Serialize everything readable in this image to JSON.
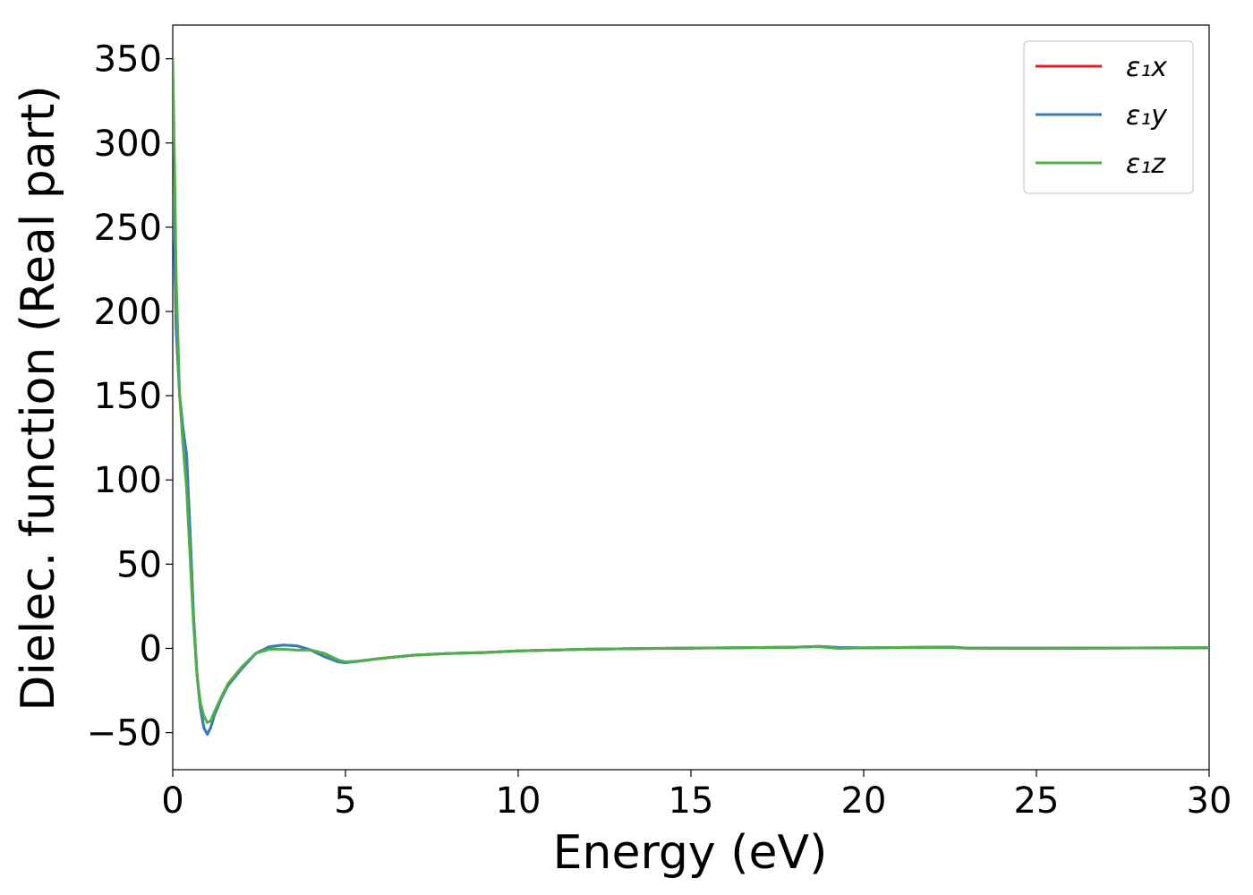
{
  "chart_data": {
    "type": "line",
    "title": "",
    "xlabel": "Energy (eV)",
    "ylabel": "Dielec. function (Real part)",
    "xlim": [
      0,
      30
    ],
    "ylim": [
      -72,
      370
    ],
    "xticks": [
      0,
      5,
      10,
      15,
      20,
      25,
      30
    ],
    "yticks": [
      -50,
      0,
      50,
      100,
      150,
      200,
      250,
      300,
      350
    ],
    "xtick_labels": [
      "0",
      "5",
      "10",
      "15",
      "20",
      "25",
      "30"
    ],
    "ytick_labels": [
      "−50",
      "0",
      "50",
      "100",
      "150",
      "200",
      "250",
      "300",
      "350"
    ],
    "grid": false,
    "legend_position": "top-right",
    "series": [
      {
        "name": "ε₁x",
        "color": "#e41a1c",
        "x": [
          0,
          0.05,
          0.1,
          0.2,
          0.3,
          0.4,
          0.5,
          0.6,
          0.7,
          0.8,
          0.9,
          1.0,
          1.1,
          1.2,
          1.4,
          1.6,
          2.0,
          2.4,
          2.8,
          3.2,
          3.6,
          4.0,
          4.4,
          4.8,
          5.0,
          5.4,
          6.0,
          7.0,
          8.0,
          9.0,
          10,
          12,
          14,
          16,
          18,
          18.7,
          19.3,
          20,
          21,
          22,
          22.5,
          23,
          25,
          27,
          30
        ],
        "y": [
          270,
          240,
          190,
          150,
          130,
          115,
          70,
          20,
          -15,
          -35,
          -47,
          -51,
          -47,
          -40,
          -30,
          -22,
          -12,
          -3,
          1,
          2,
          1.5,
          -1,
          -5,
          -8,
          -8.5,
          -7.5,
          -6,
          -4,
          -3,
          -2.5,
          -1.5,
          -0.5,
          0,
          0.3,
          0.7,
          1.2,
          0.5,
          0.3,
          0.5,
          0.7,
          0.8,
          0.2,
          0.1,
          0.2,
          0.4
        ]
      },
      {
        "name": "ε₁y",
        "color": "#377eb8",
        "x": [
          0,
          0.05,
          0.1,
          0.2,
          0.3,
          0.4,
          0.5,
          0.6,
          0.7,
          0.8,
          0.9,
          1.0,
          1.1,
          1.2,
          1.4,
          1.6,
          2.0,
          2.4,
          2.8,
          3.2,
          3.6,
          4.0,
          4.4,
          4.8,
          5.0,
          5.4,
          6.0,
          7.0,
          8.0,
          9.0,
          10,
          12,
          14,
          16,
          18,
          18.7,
          19.3,
          20,
          21,
          22,
          22.5,
          23,
          25,
          27,
          30
        ],
        "y": [
          270,
          240,
          190,
          150,
          130,
          115,
          70,
          20,
          -15,
          -35,
          -47,
          -51,
          -47,
          -40,
          -30,
          -22,
          -12,
          -3,
          1,
          2,
          1.5,
          -1,
          -5,
          -8,
          -8.5,
          -7.5,
          -6,
          -4,
          -3,
          -2.5,
          -1.5,
          -0.5,
          0,
          0.3,
          0.7,
          1.2,
          0.5,
          0.3,
          0.5,
          0.7,
          0.8,
          0.2,
          0.1,
          0.2,
          0.4
        ]
      },
      {
        "name": "ε₁z",
        "color": "#4daf4a",
        "x": [
          0,
          0.05,
          0.1,
          0.2,
          0.3,
          0.4,
          0.5,
          0.6,
          0.7,
          0.8,
          0.9,
          1.0,
          1.1,
          1.2,
          1.4,
          1.6,
          2.0,
          2.4,
          2.8,
          3.2,
          3.6,
          4.0,
          4.4,
          4.8,
          5.0,
          5.4,
          6.0,
          7.0,
          8.0,
          9.0,
          10,
          12,
          14,
          16,
          18,
          18.7,
          19.3,
          20,
          21,
          22,
          22.5,
          23,
          25,
          27,
          30
        ],
        "y": [
          350,
          290,
          220,
          150,
          120,
          95,
          55,
          15,
          -15,
          -32,
          -40,
          -44,
          -43,
          -38,
          -29,
          -21,
          -11,
          -3,
          -0.5,
          -0.5,
          -1,
          -1,
          -3,
          -7,
          -8,
          -7.5,
          -6,
          -4,
          -3,
          -2.5,
          -1.5,
          -0.5,
          0,
          0.3,
          0.7,
          1.0,
          0.0,
          0.3,
          0.5,
          0.6,
          0.5,
          0.1,
          0.1,
          0.2,
          0.4
        ]
      }
    ]
  }
}
